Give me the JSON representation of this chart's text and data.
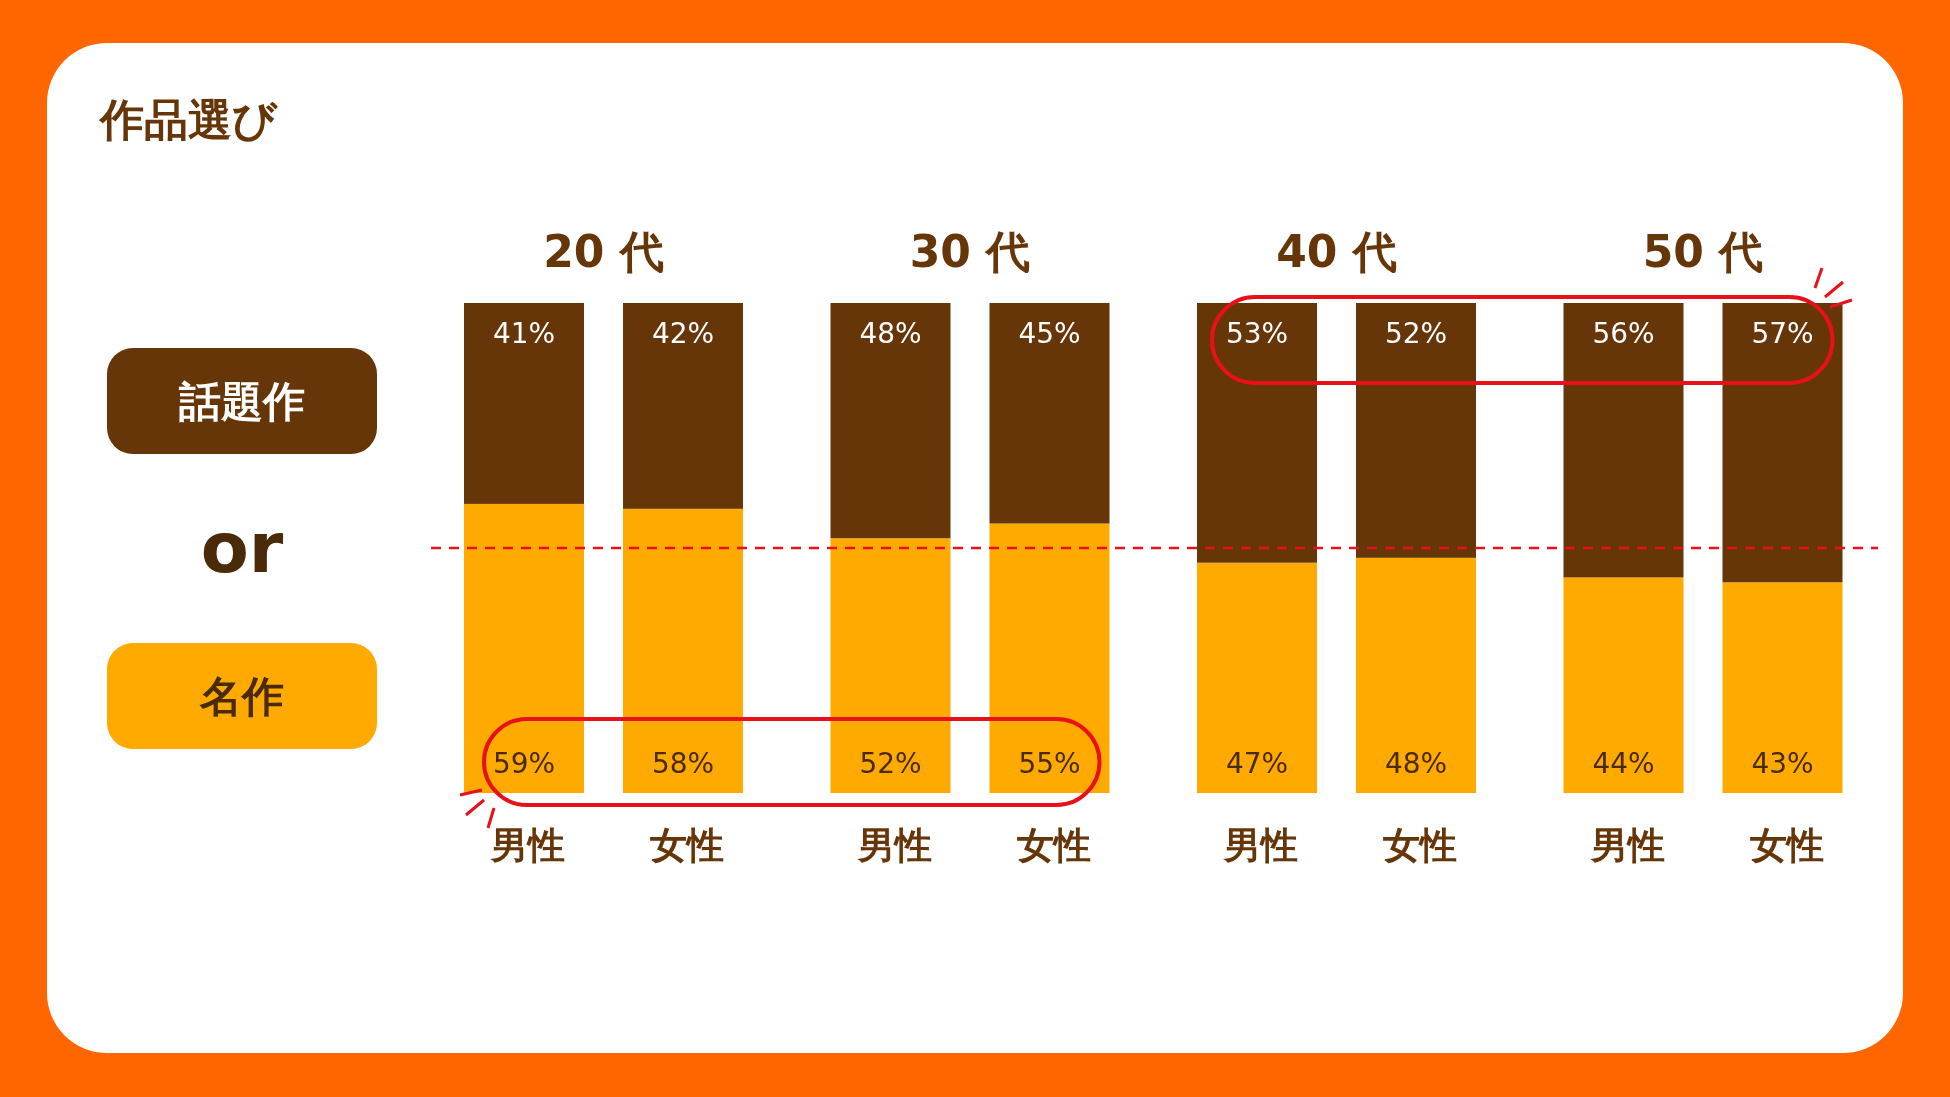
{
  "chart_data": {
    "type": "bar",
    "title": "作品選び",
    "stacked": true,
    "categories": [
      "男性",
      "女性",
      "男性",
      "女性",
      "男性",
      "女性",
      "男性",
      "女性"
    ],
    "series": [
      {
        "name": "名作",
        "color": "#ffaa00",
        "values": [
          59,
          58,
          52,
          55,
          47,
          48,
          44,
          43
        ],
        "value_labels": [
          "59%",
          "58%",
          "52%",
          "55%",
          "47%",
          "48%",
          "44%",
          "43%"
        ]
      },
      {
        "name": "話題作",
        "color": "#663508",
        "values": [
          41,
          42,
          48,
          45,
          53,
          52,
          56,
          57
        ],
        "value_labels": [
          "41%",
          "42%",
          "48%",
          "45%",
          "53%",
          "52%",
          "56%",
          "57%"
        ]
      }
    ],
    "annotations": [
      "20 代",
      "30 代",
      "40 代",
      "50 代",
      "or"
    ],
    "ylim": [
      0,
      100
    ],
    "tick_labels": "x",
    "legend": "left",
    "ref_lines": [
      {
        "axis": "y",
        "value": 50,
        "color": "#e8101a",
        "line_style": "dashed"
      }
    ]
  }
}
